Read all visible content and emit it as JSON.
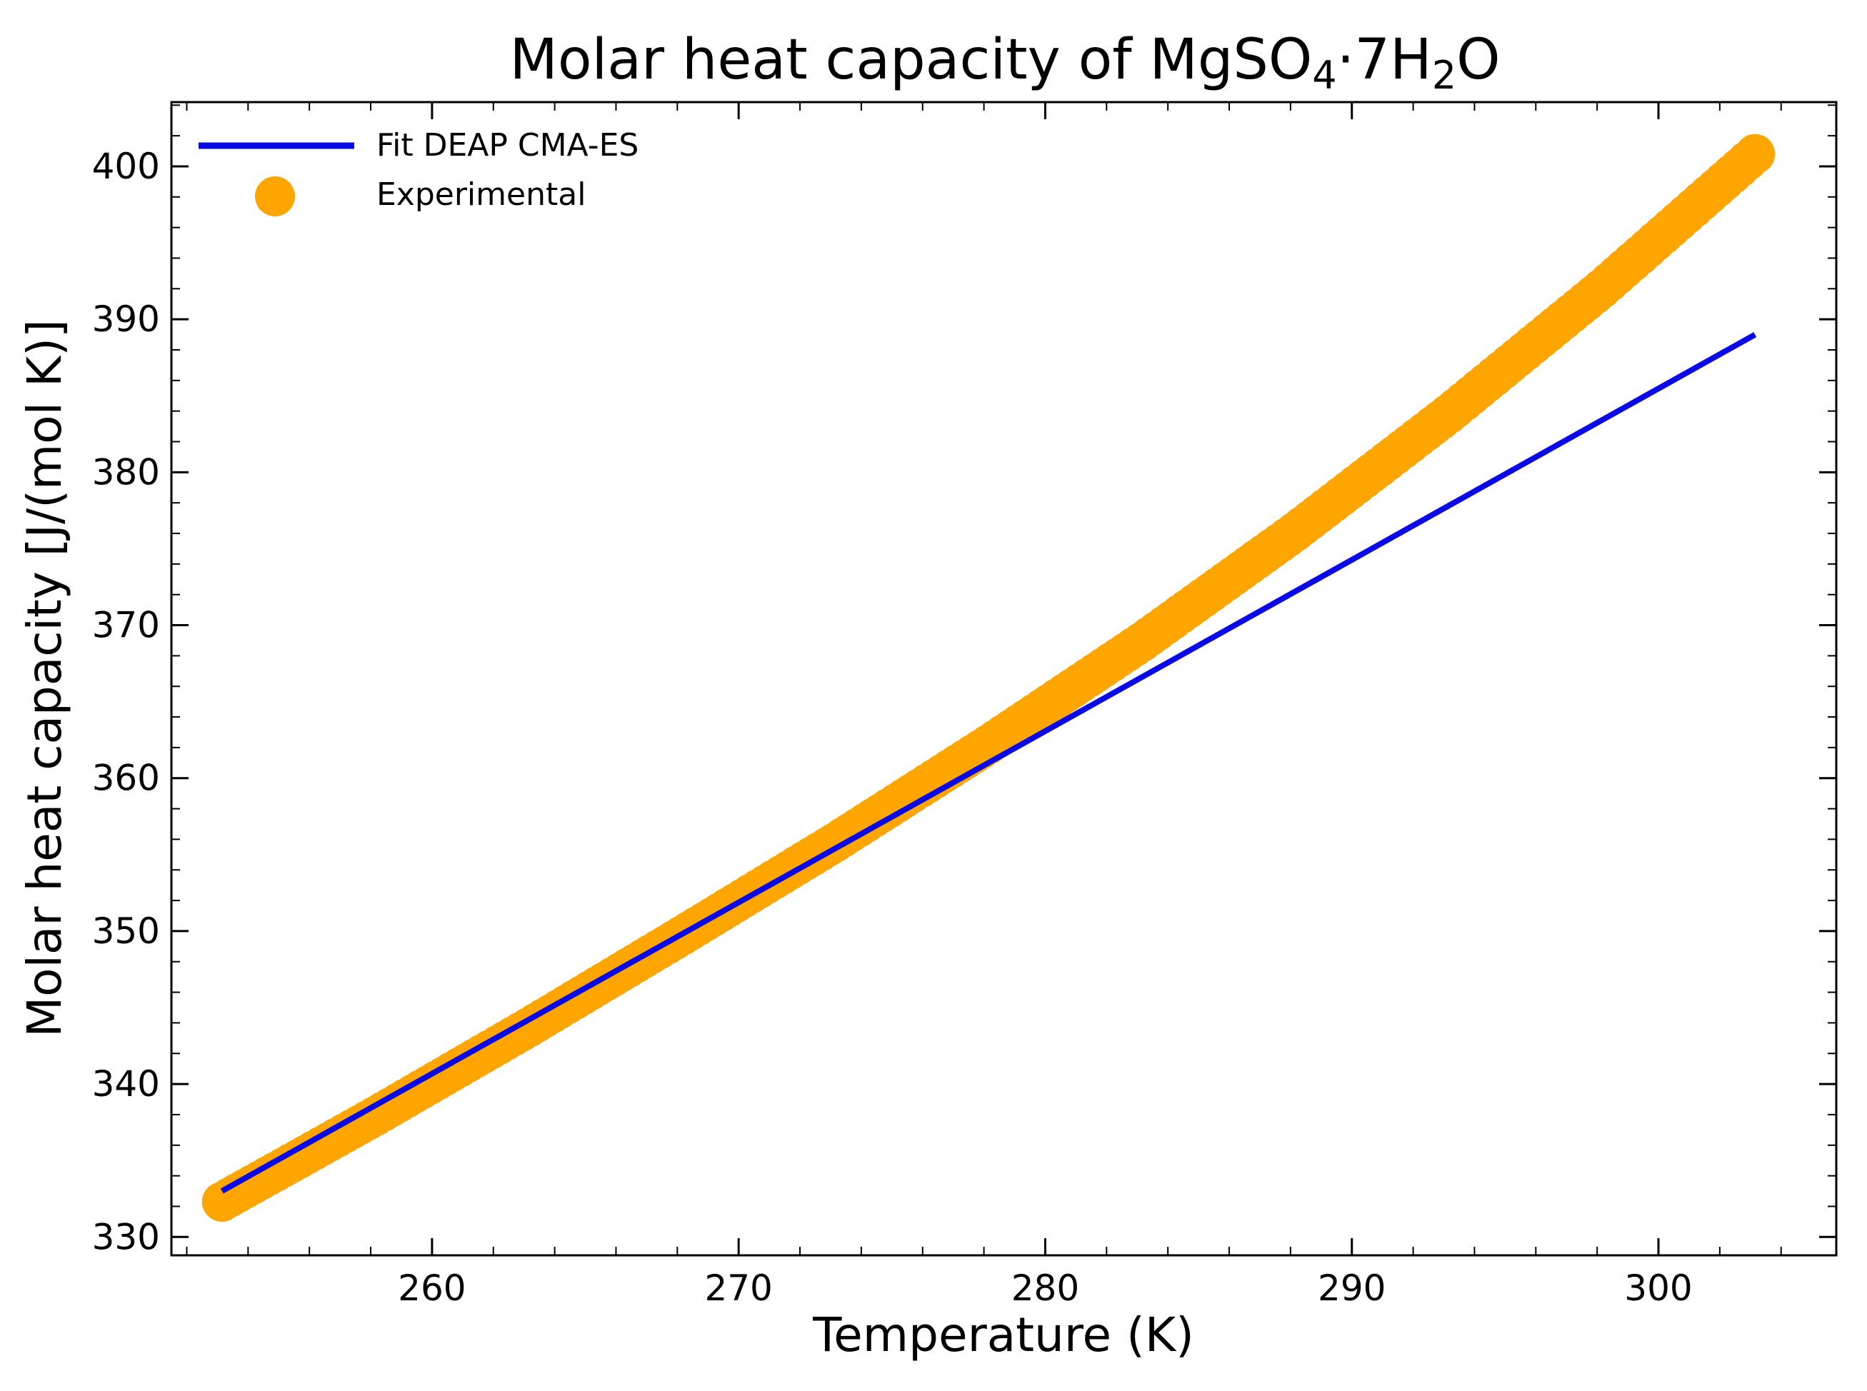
{
  "chart_data": {
    "type": "line",
    "title": {
      "prefix": "Molar heat capacity of MgSO",
      "sub1": "4",
      "mid": "·7H",
      "sub2": "2",
      "suffix": "O"
    },
    "xlabel": "Temperature (K)",
    "ylabel": "Molar heat capacity [J/(mol K)]",
    "xlim": [
      251.5,
      305.8
    ],
    "ylim": [
      328.8,
      404.2
    ],
    "xticks": [
      260,
      270,
      280,
      290,
      300
    ],
    "yticks": [
      330,
      340,
      350,
      360,
      370,
      380,
      390,
      400
    ],
    "x_minor_step": 2,
    "y_minor_step": 2,
    "grid": false,
    "legend_position": "top-left",
    "series": [
      {
        "name": "Fit DEAP CMA-ES",
        "kind": "line",
        "color": "#0a0ae6",
        "x": [
          253.15,
          303.15
        ],
        "y": [
          333.0,
          389.0
        ]
      },
      {
        "name": "Experimental",
        "kind": "markers",
        "color": "#ffa500",
        "x": [
          253.15,
          258.15,
          263.15,
          268.15,
          273.15,
          278.15,
          283.15,
          288.15,
          293.15,
          298.15,
          303.15
        ],
        "y": [
          332.3,
          337.9,
          343.7,
          349.7,
          355.8,
          362.2,
          368.9,
          376.1,
          383.8,
          392.0,
          400.8
        ]
      }
    ]
  }
}
